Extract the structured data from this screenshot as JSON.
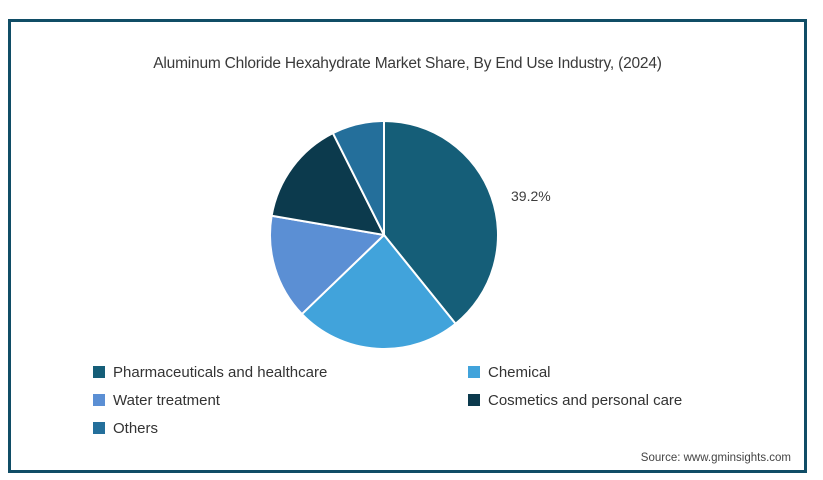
{
  "page": {
    "source_label": "Source: www.gminsights.com"
  },
  "colors": {
    "frame_border": "#104d66",
    "slice_divider": "#ffffff",
    "title_text": "#3a3a3a",
    "legend_text": "#333333",
    "data_label_text": "#3d3d3d"
  },
  "chart_data": {
    "type": "pie",
    "title": "Aluminum Chloride Hexahydrate Market Share, By End Use Industry, (2024)",
    "start_angle_deg": 0,
    "direction": "clockwise",
    "legend_position": "bottom-left-two-columns",
    "slices": [
      {
        "label": "Pharmaceuticals and healthcare",
        "value": 39.2,
        "color": "#155e78",
        "data_label": "39.2%"
      },
      {
        "label": "Chemical",
        "value": 23.6,
        "color": "#41a3db"
      },
      {
        "label": "Water treatment",
        "value": 14.9,
        "color": "#5b8fd4"
      },
      {
        "label": "Cosmetics and personal care",
        "value": 14.9,
        "color": "#0c3a4d"
      },
      {
        "label": "Others",
        "value": 7.4,
        "color": "#246f9b"
      }
    ],
    "shown_data_labels": [
      "39.2%"
    ]
  }
}
